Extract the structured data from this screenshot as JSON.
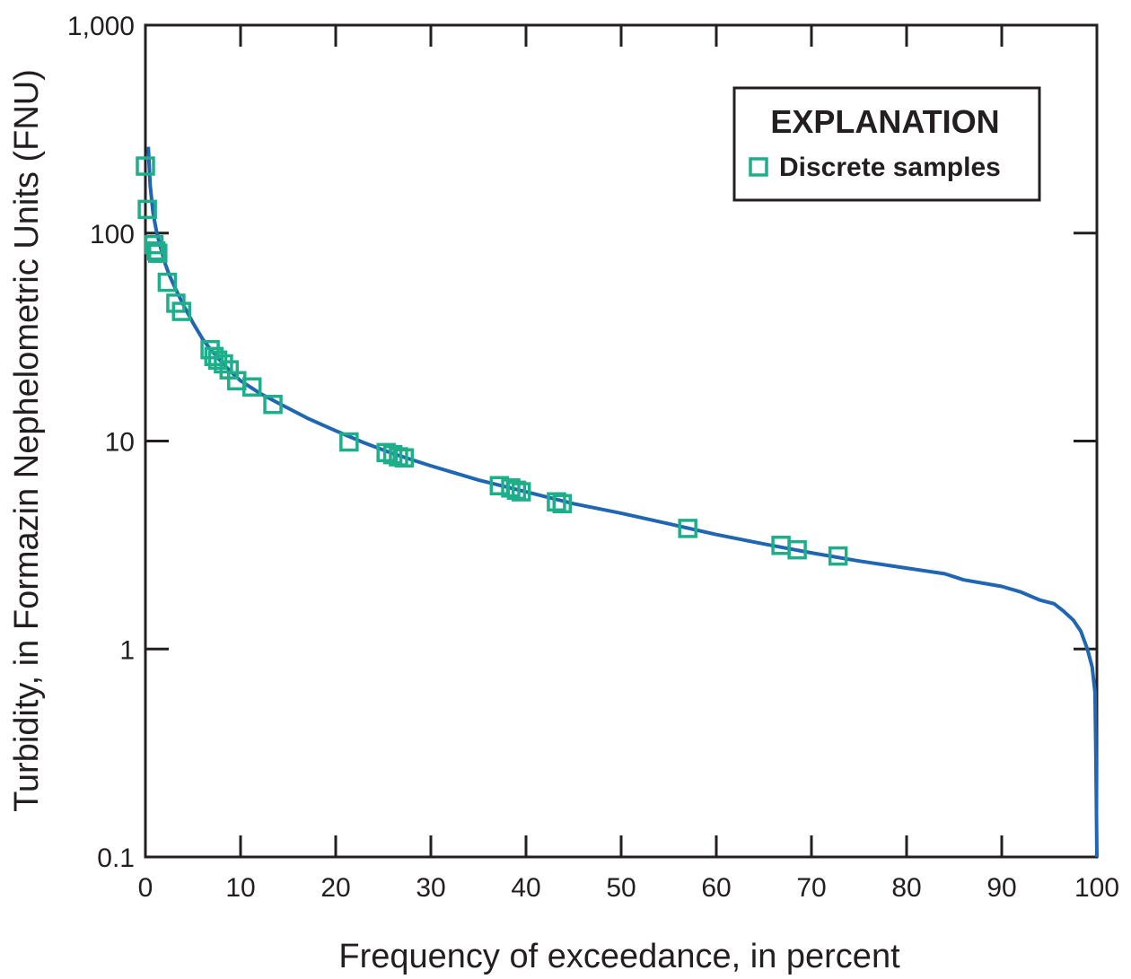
{
  "chart_data": {
    "type": "line",
    "title": "",
    "xlabel": "Frequency of exceedance, in percent",
    "ylabel": "Turbidity, in Formazin Nephelometric Units (FNU)",
    "xlim": [
      0,
      100
    ],
    "ylim": [
      0.1,
      1000
    ],
    "yscale": "log",
    "grid": false,
    "x_ticks": [
      0,
      10,
      20,
      30,
      40,
      50,
      60,
      70,
      80,
      90,
      100
    ],
    "x_tick_labels": [
      "0",
      "10",
      "20",
      "30",
      "40",
      "50",
      "60",
      "70",
      "80",
      "90",
      "100"
    ],
    "y_ticks": [
      0.1,
      1,
      10,
      100,
      1000
    ],
    "y_tick_labels": [
      "0.1",
      "1",
      "10",
      "100",
      "1,000"
    ],
    "legend": {
      "title": "EXPLANATION",
      "position": "top-right",
      "entries": [
        "Discrete samples"
      ]
    },
    "colors": {
      "curve": "#1f66b3",
      "samples": "#1fae8a",
      "axis": "#231f20"
    },
    "series": [
      {
        "type": "line",
        "x": [
          0.3,
          0.5,
          0.8,
          1.2,
          1.6,
          2.0,
          2.5,
          3.0,
          4.0,
          5.0,
          6.0,
          7.0,
          8.0,
          9.0,
          10.0,
          12.0,
          14.0,
          17.0,
          20.0,
          23.0,
          26.0,
          30.0,
          35.0,
          40.0,
          45.0,
          50.0,
          55.0,
          60.0,
          65.0,
          70.0,
          75.0,
          80.0,
          84.0,
          86.0,
          90.0,
          92.0,
          94.0,
          95.5,
          96.5,
          97.5,
          98.3,
          99.0,
          99.5,
          99.8,
          99.9,
          100.0
        ],
        "y": [
          260,
          170,
          125,
          100,
          85,
          73,
          63,
          56,
          45,
          37,
          31,
          27,
          24,
          21.5,
          19.5,
          17.0,
          15.2,
          12.9,
          11.2,
          9.8,
          8.7,
          7.6,
          6.5,
          5.7,
          5.0,
          4.5,
          4.0,
          3.55,
          3.2,
          2.9,
          2.65,
          2.45,
          2.3,
          2.15,
          2.0,
          1.88,
          1.72,
          1.65,
          1.52,
          1.38,
          1.22,
          1.0,
          0.82,
          0.62,
          0.3,
          0.1
        ]
      },
      {
        "name": "Discrete samples",
        "type": "scatter",
        "x": [
          0.0,
          0.2,
          0.9,
          1.1,
          1.3,
          2.3,
          3.2,
          3.8,
          6.8,
          7.2,
          7.6,
          8.2,
          8.8,
          9.6,
          11.2,
          13.4,
          21.4,
          25.3,
          26.0,
          26.6,
          27.2,
          37.2,
          38.4,
          39.0,
          39.5,
          43.2,
          43.8,
          57.0,
          66.8,
          68.5,
          72.8
        ],
        "y": [
          210,
          130,
          88,
          82,
          80,
          58,
          46,
          42,
          27.5,
          25.5,
          24.5,
          23.5,
          22,
          19.5,
          18.2,
          15.0,
          9.9,
          8.8,
          8.6,
          8.4,
          8.3,
          6.1,
          5.95,
          5.8,
          5.7,
          5.1,
          5.0,
          3.8,
          3.15,
          3.0,
          2.8
        ]
      }
    ]
  }
}
